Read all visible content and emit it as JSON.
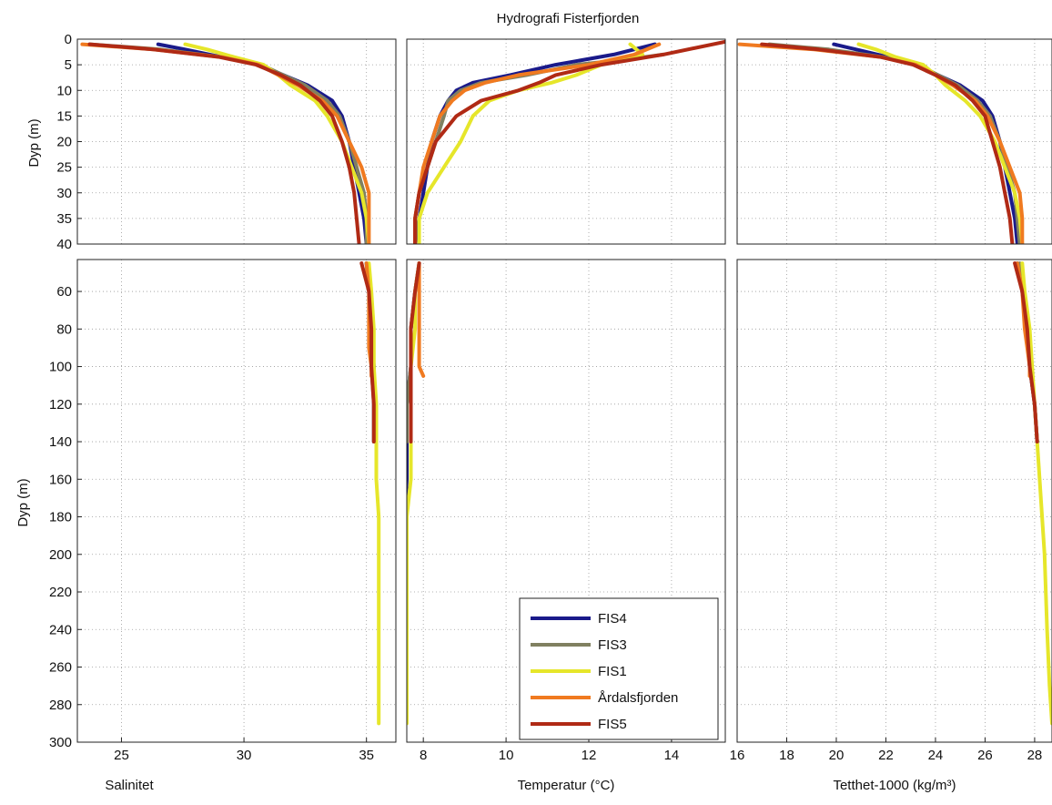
{
  "figure": {
    "title": "Hydrografi Fisterfjorden",
    "ylabel": "Dyp (m)",
    "legend_placement": "bottom-right of temperature panel",
    "grid": true
  },
  "chart_data": [
    {
      "type": "line",
      "panel": "salinity-top",
      "xlabel": "",
      "ylabel": "Dyp (m)",
      "xlim": [
        23.2,
        36.2
      ],
      "ylim": [
        40,
        0
      ],
      "xticks": [],
      "yticks": [
        0,
        5,
        10,
        15,
        20,
        25,
        30,
        35,
        40
      ],
      "series": [
        {
          "name": "FIS4",
          "color": "#1a1a8a",
          "x": [
            26.5,
            27.6,
            29.1,
            30.6,
            31.6,
            32.6,
            33.6,
            34.0,
            34.3,
            34.5,
            34.7,
            34.9,
            35.0
          ],
          "y": [
            1,
            2,
            3.5,
            5,
            7,
            9,
            12,
            15,
            20,
            25,
            30,
            35,
            40
          ]
        },
        {
          "name": "FIS3",
          "color": "#808060",
          "x": [
            23.7,
            26.6,
            29.1,
            30.7,
            31.6,
            32.5,
            33.4,
            33.9,
            34.3,
            34.6,
            34.9,
            35.0,
            35.0
          ],
          "y": [
            1,
            2,
            3.5,
            5,
            7,
            9,
            12,
            15,
            20,
            25,
            30,
            35,
            40
          ]
        },
        {
          "name": "FIS1",
          "color": "#e6e62a",
          "x": [
            27.6,
            28.5,
            29.6,
            30.8,
            31.4,
            31.9,
            32.9,
            33.4,
            34.0,
            34.4,
            34.8,
            35.0,
            35.1
          ],
          "y": [
            1,
            2,
            3.5,
            5,
            7,
            9,
            12,
            15,
            20,
            25,
            30,
            35,
            40
          ]
        },
        {
          "name": "Årdalsfjorden",
          "color": "#f07a20",
          "x": [
            23.4,
            26.3,
            29.1,
            30.6,
            31.4,
            32.2,
            33.2,
            33.8,
            34.3,
            34.8,
            35.1,
            35.1,
            35.1
          ],
          "y": [
            1,
            2,
            3.5,
            5,
            7,
            9,
            12,
            15,
            20,
            25,
            30,
            35,
            40
          ]
        },
        {
          "name": "FIS5",
          "color": "#b02a15",
          "x": [
            23.7,
            26.3,
            29.0,
            30.5,
            31.5,
            32.3,
            33.1,
            33.6,
            34.0,
            34.3,
            34.5,
            34.6,
            34.7
          ],
          "y": [
            1,
            2,
            3.5,
            5,
            7,
            9,
            12,
            15,
            20,
            25,
            30,
            35,
            40
          ]
        }
      ]
    },
    {
      "type": "line",
      "panel": "temperature-top",
      "xlabel": "",
      "ylabel": "",
      "xlim": [
        7.6,
        15.3
      ],
      "ylim": [
        40,
        0
      ],
      "xticks": [],
      "yticks": [],
      "series": [
        {
          "name": "FIS4",
          "color": "#1a1a8a",
          "x": [
            13.6,
            12.6,
            11.2,
            10.1,
            9.2,
            8.8,
            8.6,
            8.4,
            8.2,
            8.1,
            8.0,
            7.9,
            7.8
          ],
          "y": [
            1,
            3,
            5,
            7,
            8.5,
            10,
            12,
            15,
            20,
            25,
            30,
            35,
            40
          ]
        },
        {
          "name": "FIS3",
          "color": "#808060",
          "x": [
            13.8,
            12.9,
            11.7,
            10.5,
            9.4,
            8.9,
            8.6,
            8.5,
            8.3,
            8.1,
            7.9,
            7.8,
            7.8
          ],
          "y": [
            3,
            4,
            5,
            7,
            8.5,
            10,
            12,
            15,
            20,
            25,
            30,
            35,
            40
          ]
        },
        {
          "name": "FIS1",
          "color": "#e6e62a",
          "x": [
            13.0,
            13.3,
            12.3,
            11.7,
            11.1,
            10.3,
            9.6,
            9.2,
            8.9,
            8.5,
            8.1,
            7.9,
            7.9
          ],
          "y": [
            1,
            3,
            5,
            7,
            8.5,
            10,
            12,
            15,
            20,
            25,
            30,
            35,
            40
          ]
        },
        {
          "name": "Årdalsfjorden",
          "color": "#f07a20",
          "x": [
            13.7,
            13.1,
            12.0,
            10.3,
            9.5,
            9.0,
            8.7,
            8.4,
            8.2,
            8.0,
            7.9,
            7.8,
            7.8
          ],
          "y": [
            1,
            3,
            5,
            7,
            8.5,
            10,
            12,
            15,
            20,
            25,
            30,
            35,
            40
          ]
        },
        {
          "name": "FIS5",
          "color": "#b02a15",
          "x": [
            15.3,
            13.8,
            12.3,
            11.2,
            10.8,
            10.3,
            9.4,
            8.8,
            8.3,
            8.1,
            7.9,
            7.8,
            7.8
          ],
          "y": [
            0.5,
            3,
            5,
            7,
            8.5,
            10,
            12,
            15,
            20,
            25,
            30,
            35,
            40
          ]
        }
      ]
    },
    {
      "type": "line",
      "panel": "density-top",
      "xlabel": "",
      "ylabel": "",
      "xlim": [
        16,
        28.7
      ],
      "ylim": [
        40,
        0
      ],
      "xticks": [],
      "yticks": [],
      "series": [
        {
          "name": "FIS4",
          "color": "#1a1a8a",
          "x": [
            19.9,
            20.8,
            22.1,
            23.2,
            24.1,
            25.0,
            25.9,
            26.3,
            26.6,
            26.8,
            27.0,
            27.2,
            27.3
          ],
          "y": [
            1,
            2,
            3.5,
            5,
            7,
            9,
            12,
            15,
            20,
            25,
            30,
            35,
            40
          ]
        },
        {
          "name": "FIS3",
          "color": "#808060",
          "x": [
            17.3,
            19.7,
            21.9,
            23.3,
            24.1,
            24.9,
            25.7,
            26.2,
            26.6,
            26.9,
            27.2,
            27.3,
            27.4
          ],
          "y": [
            1,
            2,
            3.5,
            5,
            7,
            9,
            12,
            15,
            20,
            25,
            30,
            35,
            40
          ]
        },
        {
          "name": "FIS1",
          "color": "#e6e62a",
          "x": [
            20.9,
            21.6,
            22.4,
            23.5,
            24.0,
            24.4,
            25.2,
            25.8,
            26.4,
            26.8,
            27.2,
            27.4,
            27.5
          ],
          "y": [
            1,
            2,
            3.5,
            5,
            7,
            9,
            12,
            15,
            20,
            25,
            30,
            35,
            40
          ]
        },
        {
          "name": "Årdalsfjorden",
          "color": "#f07a20",
          "x": [
            16.1,
            19.1,
            21.8,
            23.2,
            24.0,
            24.7,
            25.6,
            26.1,
            26.6,
            27.0,
            27.4,
            27.5,
            27.5
          ],
          "y": [
            1,
            2,
            3.5,
            5,
            7,
            9,
            12,
            15,
            20,
            25,
            30,
            35,
            40
          ]
        },
        {
          "name": "FIS5",
          "color": "#b02a15",
          "x": [
            17.0,
            19.3,
            21.8,
            23.1,
            24.0,
            24.8,
            25.5,
            26.0,
            26.3,
            26.6,
            26.8,
            27.0,
            27.1
          ],
          "y": [
            1,
            2,
            3.5,
            5,
            7,
            9,
            12,
            15,
            20,
            25,
            30,
            35,
            40
          ]
        }
      ]
    },
    {
      "type": "line",
      "panel": "salinity-bottom",
      "xlabel": "Salinitet",
      "ylabel": "Dyp (m)",
      "xlim": [
        23.2,
        36.2
      ],
      "ylim": [
        300,
        43
      ],
      "xticks": [
        25,
        30,
        35
      ],
      "yticks": [
        60,
        80,
        100,
        120,
        140,
        160,
        180,
        200,
        220,
        240,
        260,
        280,
        300
      ],
      "series": [
        {
          "name": "FIS4",
          "color": "#1a1a8a",
          "x": [
            35.0,
            35.1,
            35.2,
            35.3,
            35.3,
            35.3
          ],
          "y": [
            45,
            60,
            80,
            100,
            120,
            140
          ]
        },
        {
          "name": "FIS3",
          "color": "#808060",
          "x": [
            35.0,
            35.1,
            35.2,
            35.2,
            35.3,
            35.3
          ],
          "y": [
            45,
            60,
            80,
            100,
            120,
            140
          ]
        },
        {
          "name": "FIS1",
          "color": "#e6e62a",
          "x": [
            35.1,
            35.2,
            35.3,
            35.3,
            35.4,
            35.4,
            35.4,
            35.5,
            35.5,
            35.5,
            35.5,
            35.5
          ],
          "y": [
            45,
            60,
            80,
            100,
            120,
            140,
            160,
            180,
            200,
            240,
            270,
            290
          ]
        },
        {
          "name": "Årdalsfjorden",
          "color": "#f07a20",
          "x": [
            35.0,
            35.1,
            35.1,
            35.1,
            35.2,
            35.2
          ],
          "y": [
            45,
            60,
            80,
            90,
            100,
            105
          ]
        },
        {
          "name": "FIS5",
          "color": "#b02a15",
          "x": [
            34.8,
            35.1,
            35.2,
            35.2,
            35.3,
            35.3
          ],
          "y": [
            45,
            60,
            80,
            100,
            120,
            140
          ]
        }
      ]
    },
    {
      "type": "line",
      "panel": "temperature-bottom",
      "xlabel": "Temperatur (°C)",
      "ylabel": "",
      "xlim": [
        7.6,
        15.3
      ],
      "ylim": [
        300,
        43
      ],
      "xticks": [
        8,
        10,
        12,
        14
      ],
      "yticks": [],
      "series": [
        {
          "name": "FIS4",
          "color": "#1a1a8a",
          "x": [
            7.9,
            7.8,
            7.7,
            7.7,
            7.6,
            7.6,
            7.6,
            7.5,
            7.5,
            7.5
          ],
          "y": [
            45,
            60,
            80,
            100,
            120,
            140,
            160,
            200,
            220,
            240
          ]
        },
        {
          "name": "FIS3",
          "color": "#808060",
          "x": [
            7.9,
            7.8,
            7.7,
            7.7,
            7.6,
            7.6
          ],
          "y": [
            45,
            60,
            80,
            100,
            120,
            140
          ]
        },
        {
          "name": "FIS1",
          "color": "#e6e62a",
          "x": [
            7.9,
            7.8,
            7.8,
            7.7,
            7.7,
            7.7,
            7.7,
            7.6,
            7.6,
            7.6,
            7.6,
            7.6
          ],
          "y": [
            45,
            60,
            80,
            100,
            120,
            140,
            160,
            180,
            200,
            240,
            270,
            290
          ]
        },
        {
          "name": "Årdalsfjorden",
          "color": "#f07a20",
          "x": [
            7.9,
            7.9,
            7.9,
            7.9,
            7.9,
            8.0
          ],
          "y": [
            45,
            60,
            80,
            90,
            100,
            105
          ]
        },
        {
          "name": "FIS5",
          "color": "#b02a15",
          "x": [
            7.9,
            7.8,
            7.7,
            7.7,
            7.7,
            7.7
          ],
          "y": [
            45,
            60,
            80,
            100,
            120,
            140
          ]
        }
      ]
    },
    {
      "type": "line",
      "panel": "density-bottom",
      "xlabel": "Tetthet-1000 (kg/m³)",
      "ylabel": "",
      "xlim": [
        16,
        28.7
      ],
      "ylim": [
        300,
        43
      ],
      "xticks": [
        16,
        18,
        20,
        22,
        24,
        26,
        28
      ],
      "yticks": [],
      "series": [
        {
          "name": "FIS4",
          "color": "#1a1a8a",
          "x": [
            27.3,
            27.5,
            27.7,
            27.8,
            28.0,
            28.1
          ],
          "y": [
            45,
            60,
            80,
            100,
            120,
            140
          ]
        },
        {
          "name": "FIS3",
          "color": "#808060",
          "x": [
            27.4,
            27.5,
            27.7,
            27.8,
            28.0,
            28.1
          ],
          "y": [
            45,
            60,
            80,
            100,
            120,
            140
          ]
        },
        {
          "name": "FIS1",
          "color": "#e6e62a",
          "x": [
            27.5,
            27.6,
            27.8,
            27.9,
            28.0,
            28.1,
            28.2,
            28.3,
            28.4,
            28.5,
            28.6,
            28.7
          ],
          "y": [
            45,
            60,
            80,
            100,
            120,
            140,
            160,
            180,
            200,
            240,
            270,
            290
          ]
        },
        {
          "name": "Årdalsfjorden",
          "color": "#f07a20",
          "x": [
            27.3,
            27.5,
            27.6,
            27.7,
            27.8,
            27.8
          ],
          "y": [
            45,
            60,
            80,
            90,
            100,
            105
          ]
        },
        {
          "name": "FIS5",
          "color": "#b02a15",
          "x": [
            27.2,
            27.5,
            27.7,
            27.8,
            28.0,
            28.1
          ],
          "y": [
            45,
            60,
            80,
            100,
            120,
            140
          ]
        }
      ]
    }
  ],
  "legend": {
    "entries": [
      {
        "name": "FIS4",
        "color": "#1a1a8a"
      },
      {
        "name": "FIS3",
        "color": "#808060"
      },
      {
        "name": "FIS1",
        "color": "#e6e62a"
      },
      {
        "name": "Årdalsfjorden",
        "color": "#f07a20"
      },
      {
        "name": "FIS5",
        "color": "#b02a15"
      }
    ]
  }
}
